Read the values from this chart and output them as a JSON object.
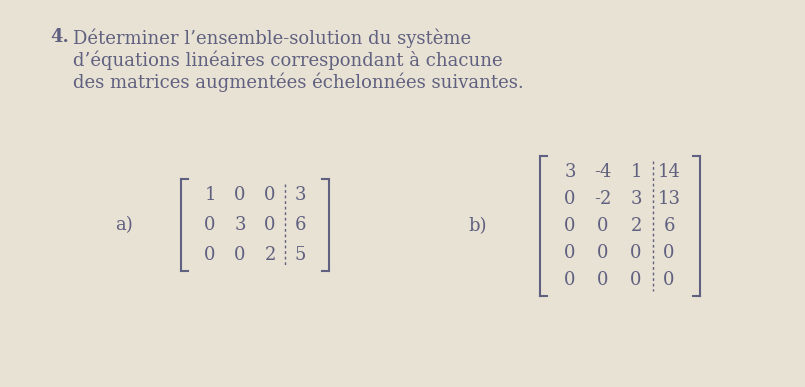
{
  "background_color": "#e8e2d4",
  "text_color": "#606080",
  "title_number": "4.",
  "title_lines": [
    "Déterminer l’ensemble-solution du système",
    "d’équations linéaires correspondant à chacune",
    "des matrices augmentées échelonnées suivantes."
  ],
  "label_a": "a)",
  "label_b": "b)",
  "matrix_a": [
    [
      "1",
      "0",
      "0",
      "3"
    ],
    [
      "0",
      "3",
      "0",
      "6"
    ],
    [
      "0",
      "0",
      "2",
      "5"
    ]
  ],
  "matrix_b": [
    [
      "3",
      "-4",
      "1",
      "14"
    ],
    [
      "0",
      "-2",
      "3",
      "13"
    ],
    [
      "0",
      "0",
      "2",
      "6"
    ],
    [
      "0",
      "0",
      "0",
      "0"
    ],
    [
      "0",
      "0",
      "0",
      "0"
    ]
  ],
  "matrix_a_aug_col": 3,
  "matrix_b_aug_col": 3,
  "font_size_title": 13.0,
  "font_size_matrix": 13.0,
  "font_size_label": 13.0
}
